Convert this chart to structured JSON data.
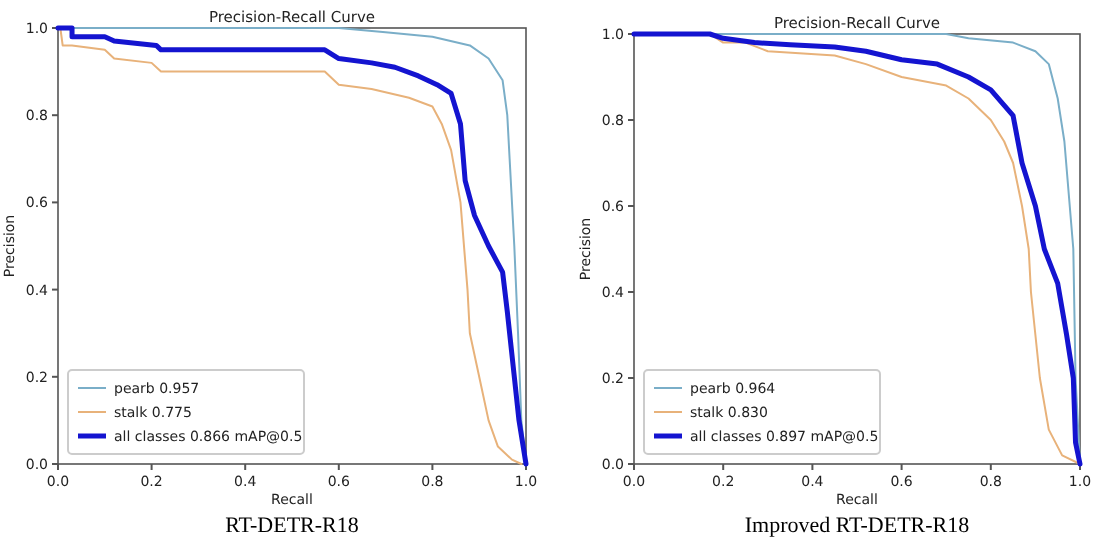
{
  "chart_data": [
    {
      "type": "line",
      "title": "Precision-Recall Curve",
      "xlabel": "Recall",
      "ylabel": "Precision",
      "xlim": [
        0,
        1
      ],
      "ylim": [
        0,
        1
      ],
      "xticks": [
        {
          "value": 0,
          "label": "0.0"
        },
        {
          "value": 0.2,
          "label": "0.2"
        },
        {
          "value": 0.4,
          "label": "0.4"
        },
        {
          "value": 0.6,
          "label": "0.6"
        },
        {
          "value": 0.8,
          "label": "0.8"
        },
        {
          "value": 1,
          "label": "1.0"
        }
      ],
      "yticks": [
        {
          "value": 0,
          "label": "0.0"
        },
        {
          "value": 0.2,
          "label": "0.2"
        },
        {
          "value": 0.4,
          "label": "0.4"
        },
        {
          "value": 0.6,
          "label": "0.6"
        },
        {
          "value": 0.8,
          "label": "0.8"
        },
        {
          "value": 1,
          "label": "1.0"
        }
      ],
      "legend": "bottom left",
      "grid": false,
      "annotations": [
        "RT-DETR-R18"
      ],
      "series": [
        {
          "name": "pearb 0.957",
          "color": "#7aaec8",
          "x": [
            0,
            0.6,
            0.7,
            0.8,
            0.88,
            0.92,
            0.95,
            0.96,
            0.965,
            0.975,
            0.983,
            0.99,
            1.0
          ],
          "values": [
            1,
            1,
            0.99,
            0.98,
            0.96,
            0.93,
            0.88,
            0.8,
            0.7,
            0.5,
            0.3,
            0.1,
            0
          ]
        },
        {
          "name": "stalk 0.775",
          "color": "#e8b27a",
          "x": [
            0,
            0.005,
            0.01,
            0.03,
            0.1,
            0.12,
            0.2,
            0.22,
            0.57,
            0.6,
            0.67,
            0.75,
            0.8,
            0.82,
            0.84,
            0.86,
            0.875,
            0.88,
            0.9,
            0.92,
            0.94,
            0.97,
            0.99
          ],
          "values": [
            1,
            1,
            0.96,
            0.96,
            0.95,
            0.93,
            0.92,
            0.9,
            0.9,
            0.87,
            0.86,
            0.84,
            0.82,
            0.78,
            0.72,
            0.6,
            0.4,
            0.3,
            0.2,
            0.1,
            0.04,
            0.01,
            0
          ]
        },
        {
          "name": "all classes 0.866 mAP@0.5",
          "color": "#1414d0",
          "x": [
            0,
            0.03,
            0.03,
            0.1,
            0.12,
            0.21,
            0.22,
            0.57,
            0.6,
            0.67,
            0.72,
            0.77,
            0.81,
            0.84,
            0.86,
            0.87,
            0.89,
            0.92,
            0.95,
            0.96,
            0.975,
            0.985,
            1.0
          ],
          "values": [
            1,
            1,
            0.98,
            0.98,
            0.97,
            0.96,
            0.95,
            0.95,
            0.93,
            0.92,
            0.91,
            0.89,
            0.87,
            0.85,
            0.78,
            0.65,
            0.57,
            0.5,
            0.44,
            0.35,
            0.2,
            0.1,
            0
          ]
        }
      ]
    },
    {
      "type": "line",
      "title": "Precision-Recall Curve",
      "xlabel": "Recall",
      "ylabel": "Precision",
      "xlim": [
        0,
        1
      ],
      "ylim": [
        0,
        1
      ],
      "xticks": [
        {
          "value": 0,
          "label": "0.0"
        },
        {
          "value": 0.2,
          "label": "0.2"
        },
        {
          "value": 0.4,
          "label": "0.4"
        },
        {
          "value": 0.6,
          "label": "0.6"
        },
        {
          "value": 0.8,
          "label": "0.8"
        },
        {
          "value": 1,
          "label": "1.0"
        }
      ],
      "yticks": [
        {
          "value": 0,
          "label": "0.0"
        },
        {
          "value": 0.2,
          "label": "0.2"
        },
        {
          "value": 0.4,
          "label": "0.4"
        },
        {
          "value": 0.6,
          "label": "0.6"
        },
        {
          "value": 0.8,
          "label": "0.8"
        },
        {
          "value": 1,
          "label": "1.0"
        }
      ],
      "legend": "bottom left",
      "grid": false,
      "annotations": [
        "Improved RT-DETR-R18"
      ],
      "series": [
        {
          "name": "pearb 0.964",
          "color": "#7aaec8",
          "x": [
            0,
            0.7,
            0.75,
            0.85,
            0.9,
            0.93,
            0.95,
            0.965,
            0.985,
            0.99,
            1.0
          ],
          "values": [
            1,
            1,
            0.99,
            0.98,
            0.96,
            0.93,
            0.85,
            0.75,
            0.5,
            0.2,
            0
          ]
        },
        {
          "name": "stalk 0.830",
          "color": "#e8b27a",
          "x": [
            0,
            0.17,
            0.2,
            0.25,
            0.3,
            0.45,
            0.52,
            0.6,
            0.7,
            0.75,
            0.8,
            0.83,
            0.85,
            0.87,
            0.885,
            0.89,
            0.9,
            0.91,
            0.93,
            0.96,
            1.0
          ],
          "values": [
            1,
            1,
            0.98,
            0.98,
            0.96,
            0.95,
            0.93,
            0.9,
            0.88,
            0.85,
            0.8,
            0.75,
            0.7,
            0.6,
            0.5,
            0.4,
            0.3,
            0.2,
            0.08,
            0.02,
            0
          ]
        },
        {
          "name": "all classes 0.897 mAP@0.5",
          "color": "#1414d0",
          "x": [
            0,
            0.17,
            0.2,
            0.27,
            0.35,
            0.45,
            0.52,
            0.6,
            0.68,
            0.75,
            0.8,
            0.85,
            0.87,
            0.9,
            0.92,
            0.95,
            0.97,
            0.985,
            0.99,
            1.0
          ],
          "values": [
            1,
            1,
            0.99,
            0.98,
            0.975,
            0.97,
            0.96,
            0.94,
            0.93,
            0.9,
            0.87,
            0.81,
            0.7,
            0.6,
            0.5,
            0.42,
            0.3,
            0.2,
            0.05,
            0
          ]
        }
      ]
    }
  ]
}
